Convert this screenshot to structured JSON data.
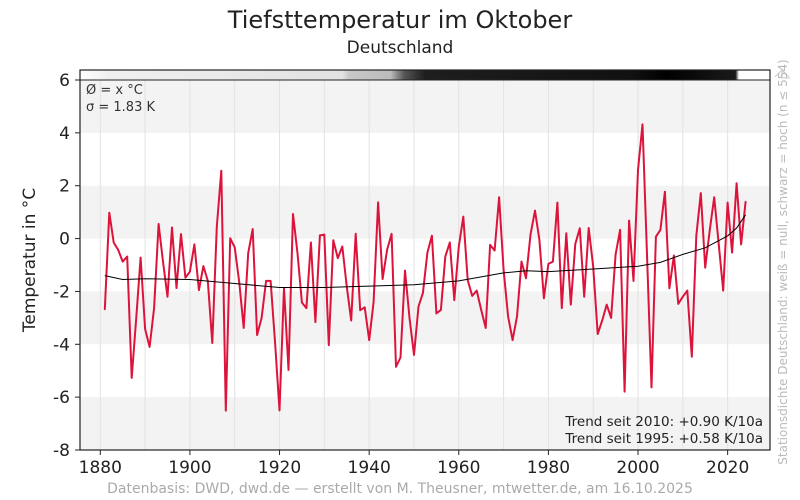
{
  "title": "Tiefsttemperatur im Oktober",
  "subtitle": "Deutschland",
  "footer": "Datenbasis: DWD, dwd.de — erstellt von M. Theusner, mtwetter.de, am 16.10.2025",
  "side_label": "Stationsdichte Deutschland: weiß = null, schwarz = hoch (n ≤ 554)",
  "stats": {
    "mean": "Ø = x °C",
    "sigma": "σ = 1.83 K"
  },
  "trends": [
    "Trend seit 2010: +0.90 K/10a",
    "Trend seit 1995: +0.58 K/10a"
  ],
  "colors": {
    "series": "#dc143c",
    "trend": "#000000",
    "band": "#f3f3f3",
    "grid": "#e2e2e2"
  },
  "chart_data": {
    "type": "line",
    "title": "Tiefsttemperatur im Oktober",
    "xlabel": "",
    "ylabel": "Temperatur in °C",
    "xlim": [
      1873,
      2030
    ],
    "ylim": [
      -8,
      6
    ],
    "xticks": [
      1880,
      1900,
      1920,
      1940,
      1960,
      1980,
      2000,
      2020
    ],
    "yticks": [
      -8,
      -6,
      -4,
      -2,
      0,
      2,
      4,
      6
    ],
    "start_year": 1881,
    "series": [
      {
        "name": "Tiefsttemperatur Oktober",
        "values": [
          -2.68,
          0.98,
          -0.15,
          -0.43,
          -0.87,
          -0.68,
          -5.27,
          -3.08,
          -0.72,
          -3.42,
          -4.1,
          -2.63,
          0.55,
          -0.87,
          -2.2,
          0.42,
          -1.87,
          0.17,
          -1.48,
          -1.25,
          -0.22,
          -1.95,
          -1.04,
          -1.6,
          -3.95,
          0.45,
          2.57,
          -6.51,
          0.01,
          -0.33,
          -1.64,
          -3.38,
          -0.55,
          0.36,
          -3.65,
          -3.0,
          -1.6,
          -1.6,
          -3.95,
          -6.5,
          -1.87,
          -4.97,
          0.93,
          -0.55,
          -2.42,
          -2.63,
          -0.15,
          -3.16,
          0.12,
          0.15,
          -4.03,
          -0.06,
          -0.74,
          -0.3,
          -1.83,
          -3.1,
          0.18,
          -2.71,
          -2.6,
          -3.84,
          -2.4,
          1.37,
          -1.53,
          -0.43,
          0.18,
          -4.85,
          -4.5,
          -1.21,
          -3.0,
          -4.4,
          -2.57,
          -2.06,
          -0.53,
          0.11,
          -2.83,
          -2.7,
          -0.68,
          -0.15,
          -2.33,
          -0.3,
          0.83,
          -1.57,
          -2.17,
          -1.97,
          -2.7,
          -3.38,
          -0.24,
          -0.45,
          1.56,
          -1.19,
          -2.95,
          -3.84,
          -2.95,
          -0.87,
          -1.5,
          0.15,
          1.06,
          -0.05,
          -2.26,
          -0.96,
          -0.87,
          1.36,
          -2.63,
          0.2,
          -2.5,
          -0.2,
          0.39,
          -2.2,
          0.4,
          -1.06,
          -3.61,
          -3.1,
          -2.5,
          -3.0,
          -0.6,
          0.33,
          -5.79,
          0.68,
          -1.6,
          2.6,
          4.32,
          -0.6,
          -5.63,
          0.07,
          0.33,
          1.77,
          -1.88,
          -0.64,
          -2.47,
          -2.2,
          -1.97,
          -4.47,
          0.1,
          1.72,
          -1.1,
          0.3,
          1.56,
          -0.2,
          -1.97,
          1.36,
          -0.53,
          2.09,
          -0.22,
          1.4
        ]
      },
      {
        "name": "Trend (geglättet)",
        "x": [
          1881,
          1885,
          1890,
          1900,
          1910,
          1920,
          1930,
          1940,
          1950,
          1960,
          1970,
          1975,
          1980,
          1990,
          2000,
          2005,
          2010,
          2015,
          2020,
          2022,
          2024
        ],
        "values": [
          -1.4,
          -1.55,
          -1.52,
          -1.55,
          -1.7,
          -1.85,
          -1.85,
          -1.8,
          -1.75,
          -1.6,
          -1.3,
          -1.22,
          -1.25,
          -1.15,
          -1.05,
          -0.9,
          -0.6,
          -0.35,
          0.1,
          0.4,
          0.9
        ]
      }
    ]
  }
}
